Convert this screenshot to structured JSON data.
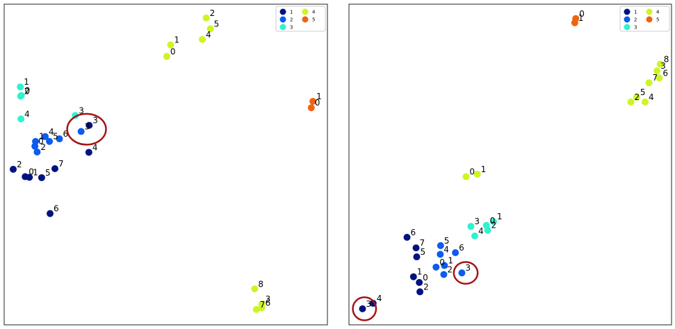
{
  "chart_data": [
    {
      "type": "scatter",
      "grid": false,
      "legend_position": "top-right",
      "legend": [
        {
          "label": "1",
          "color": "#00137f"
        },
        {
          "label": "2",
          "color": "#0d5bf0"
        },
        {
          "label": "3",
          "color": "#2ff2cf"
        },
        {
          "label": "4",
          "color": "#ccf524"
        },
        {
          "label": "5",
          "color": "#ee6410"
        }
      ],
      "series": [
        {
          "name": "1",
          "color": "#00137f",
          "points": [
            {
              "x": 0.028,
              "y": 0.515,
              "label": "2"
            },
            {
              "x": 0.065,
              "y": 0.538,
              "label": "0"
            },
            {
              "x": 0.078,
              "y": 0.54,
              "label": "1"
            },
            {
              "x": 0.116,
              "y": 0.541,
              "label": "5"
            },
            {
              "x": 0.157,
              "y": 0.513,
              "label": "7"
            },
            {
              "x": 0.142,
              "y": 0.653,
              "label": "6"
            },
            {
              "x": 0.263,
              "y": 0.378,
              "label": "3"
            },
            {
              "x": 0.262,
              "y": 0.462,
              "label": "4"
            }
          ]
        },
        {
          "name": "2",
          "color": "#0d5bf0",
          "points": [
            {
              "x": 0.127,
              "y": 0.413,
              "label": "4"
            },
            {
              "x": 0.14,
              "y": 0.428,
              "label": "5"
            },
            {
              "x": 0.171,
              "y": 0.42,
              "label": "6"
            },
            {
              "x": 0.097,
              "y": 0.428,
              "label": "1"
            },
            {
              "x": 0.095,
              "y": 0.443,
              "label": "0"
            },
            {
              "x": 0.102,
              "y": 0.461,
              "label": "2"
            },
            {
              "x": 0.238,
              "y": 0.397,
              "label": "3"
            }
          ]
        },
        {
          "name": "3",
          "color": "#2ff2cf",
          "points": [
            {
              "x": 0.05,
              "y": 0.258,
              "label": "1"
            },
            {
              "x": 0.053,
              "y": 0.285,
              "label": "0"
            },
            {
              "x": 0.051,
              "y": 0.287,
              "label": "2"
            },
            {
              "x": 0.052,
              "y": 0.358,
              "label": "4"
            },
            {
              "x": 0.22,
              "y": 0.347,
              "label": "3"
            }
          ]
        },
        {
          "name": "4",
          "color": "#ccf524",
          "points": [
            {
              "x": 0.625,
              "y": 0.043,
              "label": "2"
            },
            {
              "x": 0.638,
              "y": 0.077,
              "label": "5"
            },
            {
              "x": 0.613,
              "y": 0.11,
              "label": "4"
            },
            {
              "x": 0.515,
              "y": 0.127,
              "label": "1"
            },
            {
              "x": 0.503,
              "y": 0.163,
              "label": "0"
            },
            {
              "x": 0.775,
              "y": 0.888,
              "label": "8"
            },
            {
              "x": 0.797,
              "y": 0.935,
              "label": "3"
            },
            {
              "x": 0.797,
              "y": 0.947,
              "label": "6"
            },
            {
              "x": 0.78,
              "y": 0.952,
              "label": "7"
            }
          ]
        },
        {
          "name": "5",
          "color": "#ee6410",
          "points": [
            {
              "x": 0.955,
              "y": 0.303,
              "label": "1"
            },
            {
              "x": 0.95,
              "y": 0.323,
              "label": "0"
            }
          ]
        }
      ],
      "annotations": [
        {
          "type": "circle",
          "x": 0.255,
          "y": 0.39,
          "rx": 0.06,
          "ry": 0.048,
          "color": "#a51316"
        }
      ]
    },
    {
      "type": "scatter",
      "grid": false,
      "legend_position": "top-right",
      "legend": [
        {
          "label": "1",
          "color": "#00137f"
        },
        {
          "label": "2",
          "color": "#0d5bf0"
        },
        {
          "label": "3",
          "color": "#2ff2cf"
        },
        {
          "label": "4",
          "color": "#ccf524"
        },
        {
          "label": "5",
          "color": "#ee6410"
        }
      ],
      "series": [
        {
          "name": "1",
          "color": "#00137f",
          "points": [
            {
              "x": 0.18,
              "y": 0.727,
              "label": "6"
            },
            {
              "x": 0.208,
              "y": 0.76,
              "label": "7"
            },
            {
              "x": 0.21,
              "y": 0.788,
              "label": "5"
            },
            {
              "x": 0.2,
              "y": 0.85,
              "label": "1"
            },
            {
              "x": 0.218,
              "y": 0.868,
              "label": "0"
            },
            {
              "x": 0.22,
              "y": 0.897,
              "label": "2"
            },
            {
              "x": 0.042,
              "y": 0.95,
              "label": "3"
            },
            {
              "x": 0.075,
              "y": 0.933,
              "label": "4"
            }
          ]
        },
        {
          "name": "2",
          "color": "#0d5bf0",
          "points": [
            {
              "x": 0.284,
              "y": 0.753,
              "label": "5"
            },
            {
              "x": 0.283,
              "y": 0.78,
              "label": "4"
            },
            {
              "x": 0.33,
              "y": 0.775,
              "label": "6"
            },
            {
              "x": 0.27,
              "y": 0.82,
              "label": "0"
            },
            {
              "x": 0.296,
              "y": 0.815,
              "label": "1"
            },
            {
              "x": 0.294,
              "y": 0.843,
              "label": "2"
            },
            {
              "x": 0.35,
              "y": 0.838,
              "label": "3"
            }
          ]
        },
        {
          "name": "3",
          "color": "#2ff2cf",
          "points": [
            {
              "x": 0.378,
              "y": 0.693,
              "label": "3"
            },
            {
              "x": 0.426,
              "y": 0.69,
              "label": "0"
            },
            {
              "x": 0.448,
              "y": 0.678,
              "label": "1"
            },
            {
              "x": 0.43,
              "y": 0.705,
              "label": "2"
            },
            {
              "x": 0.39,
              "y": 0.723,
              "label": "4"
            }
          ]
        },
        {
          "name": "4",
          "color": "#ccf524",
          "points": [
            {
              "x": 0.363,
              "y": 0.538,
              "label": "0"
            },
            {
              "x": 0.398,
              "y": 0.53,
              "label": "1"
            },
            {
              "x": 0.965,
              "y": 0.187,
              "label": "8"
            },
            {
              "x": 0.955,
              "y": 0.208,
              "label": "3"
            },
            {
              "x": 0.962,
              "y": 0.23,
              "label": "6"
            },
            {
              "x": 0.93,
              "y": 0.245,
              "label": "7"
            },
            {
              "x": 0.892,
              "y": 0.29,
              "label": "5"
            },
            {
              "x": 0.874,
              "y": 0.305,
              "label": "2"
            },
            {
              "x": 0.918,
              "y": 0.305,
              "label": "4"
            }
          ]
        },
        {
          "name": "5",
          "color": "#ee6410",
          "points": [
            {
              "x": 0.703,
              "y": 0.045,
              "label": "0"
            },
            {
              "x": 0.7,
              "y": 0.058,
              "label": "1"
            }
          ]
        }
      ],
      "annotations": [
        {
          "type": "circle",
          "x": 0.362,
          "y": 0.838,
          "rx": 0.037,
          "ry": 0.034,
          "color": "#a51316"
        },
        {
          "type": "circle",
          "x": 0.048,
          "y": 0.95,
          "rx": 0.036,
          "ry": 0.036,
          "color": "#a51316"
        }
      ]
    }
  ]
}
